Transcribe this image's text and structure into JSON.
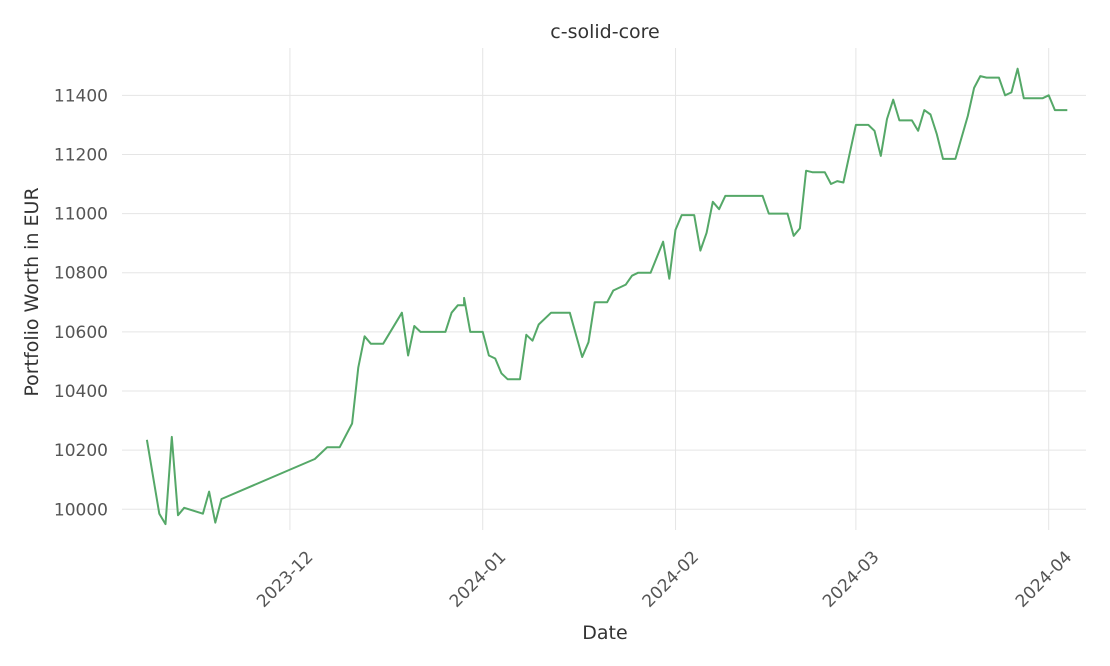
{
  "chart_data": {
    "type": "line",
    "title": "c-solid-core",
    "xlabel": "Date",
    "ylabel": "Portfolio Worth in EUR",
    "xlim": [
      "2023-11-04",
      "2024-04-07"
    ],
    "ylim": [
      9930,
      11560
    ],
    "x_ticks": [
      "2023-12-01",
      "2024-01-01",
      "2024-02-01",
      "2024-03-01",
      "2024-04-01"
    ],
    "x_tick_labels": [
      "2023-12",
      "2024-01",
      "2024-02",
      "2024-03",
      "2024-04"
    ],
    "y_ticks": [
      10000,
      10200,
      10400,
      10600,
      10800,
      11000,
      11200,
      11400
    ],
    "grid": true,
    "line_color": "#55a868",
    "series": [
      {
        "name": "",
        "points": [
          [
            "2023-11-08",
            10235
          ],
          [
            "2023-11-10",
            9985
          ],
          [
            "2023-11-11",
            9950
          ],
          [
            "2023-11-12",
            10245
          ],
          [
            "2023-11-13",
            9980
          ],
          [
            "2023-11-14",
            10005
          ],
          [
            "2023-11-17",
            9985
          ],
          [
            "2023-11-18",
            10060
          ],
          [
            "2023-11-19",
            9955
          ],
          [
            "2023-11-20",
            10035
          ],
          [
            "2023-12-05",
            10170
          ],
          [
            "2023-12-06",
            10190
          ],
          [
            "2023-12-07",
            10210
          ],
          [
            "2023-12-09",
            10210
          ],
          [
            "2023-12-11",
            10290
          ],
          [
            "2023-12-12",
            10480
          ],
          [
            "2023-12-13",
            10585
          ],
          [
            "2023-12-14",
            10560
          ],
          [
            "2023-12-16",
            10560
          ],
          [
            "2023-12-19",
            10665
          ],
          [
            "2023-12-20",
            10520
          ],
          [
            "2023-12-21",
            10620
          ],
          [
            "2023-12-22",
            10600
          ],
          [
            "2023-12-26",
            10600
          ],
          [
            "2023-12-27",
            10665
          ],
          [
            "2023-12-28",
            10690
          ],
          [
            "2023-12-29",
            10690
          ],
          [
            "2023-12-29",
            10715
          ],
          [
            "2023-12-30",
            10600
          ],
          [
            "2024-01-01",
            10600
          ],
          [
            "2024-01-02",
            10520
          ],
          [
            "2024-01-03",
            10510
          ],
          [
            "2024-01-04",
            10460
          ],
          [
            "2024-01-05",
            10440
          ],
          [
            "2024-01-07",
            10440
          ],
          [
            "2024-01-08",
            10590
          ],
          [
            "2024-01-09",
            10570
          ],
          [
            "2024-01-10",
            10625
          ],
          [
            "2024-01-12",
            10665
          ],
          [
            "2024-01-15",
            10665
          ],
          [
            "2024-01-17",
            10515
          ],
          [
            "2024-01-18",
            10565
          ],
          [
            "2024-01-19",
            10700
          ],
          [
            "2024-01-21",
            10700
          ],
          [
            "2024-01-22",
            10740
          ],
          [
            "2024-01-24",
            10760
          ],
          [
            "2024-01-25",
            10790
          ],
          [
            "2024-01-26",
            10800
          ],
          [
            "2024-01-28",
            10800
          ],
          [
            "2024-01-30",
            10905
          ],
          [
            "2024-01-31",
            10780
          ],
          [
            "2024-02-01",
            10945
          ],
          [
            "2024-02-02",
            10995
          ],
          [
            "2024-02-04",
            10995
          ],
          [
            "2024-02-05",
            10875
          ],
          [
            "2024-02-06",
            10935
          ],
          [
            "2024-02-07",
            11040
          ],
          [
            "2024-02-08",
            11015
          ],
          [
            "2024-02-09",
            11060
          ],
          [
            "2024-02-11",
            11060
          ],
          [
            "2024-02-15",
            11060
          ],
          [
            "2024-02-16",
            11000
          ],
          [
            "2024-02-19",
            11000
          ],
          [
            "2024-02-20",
            10925
          ],
          [
            "2024-02-21",
            10950
          ],
          [
            "2024-02-22",
            11145
          ],
          [
            "2024-02-23",
            11140
          ],
          [
            "2024-02-25",
            11140
          ],
          [
            "2024-02-26",
            11100
          ],
          [
            "2024-02-27",
            11110
          ],
          [
            "2024-02-28",
            11105
          ],
          [
            "2024-03-01",
            11300
          ],
          [
            "2024-03-03",
            11300
          ],
          [
            "2024-03-04",
            11280
          ],
          [
            "2024-03-05",
            11195
          ],
          [
            "2024-03-06",
            11320
          ],
          [
            "2024-03-07",
            11385
          ],
          [
            "2024-03-08",
            11315
          ],
          [
            "2024-03-10",
            11315
          ],
          [
            "2024-03-11",
            11280
          ],
          [
            "2024-03-12",
            11350
          ],
          [
            "2024-03-13",
            11335
          ],
          [
            "2024-03-14",
            11270
          ],
          [
            "2024-03-15",
            11185
          ],
          [
            "2024-03-17",
            11185
          ],
          [
            "2024-03-19",
            11330
          ],
          [
            "2024-03-20",
            11425
          ],
          [
            "2024-03-21",
            11465
          ],
          [
            "2024-03-22",
            11460
          ],
          [
            "2024-03-24",
            11460
          ],
          [
            "2024-03-25",
            11400
          ],
          [
            "2024-03-26",
            11410
          ],
          [
            "2024-03-27",
            11490
          ],
          [
            "2024-03-28",
            11390
          ],
          [
            "2024-03-31",
            11390
          ],
          [
            "2024-04-01",
            11400
          ],
          [
            "2024-04-02",
            11350
          ],
          [
            "2024-04-04",
            11350
          ]
        ]
      }
    ]
  }
}
